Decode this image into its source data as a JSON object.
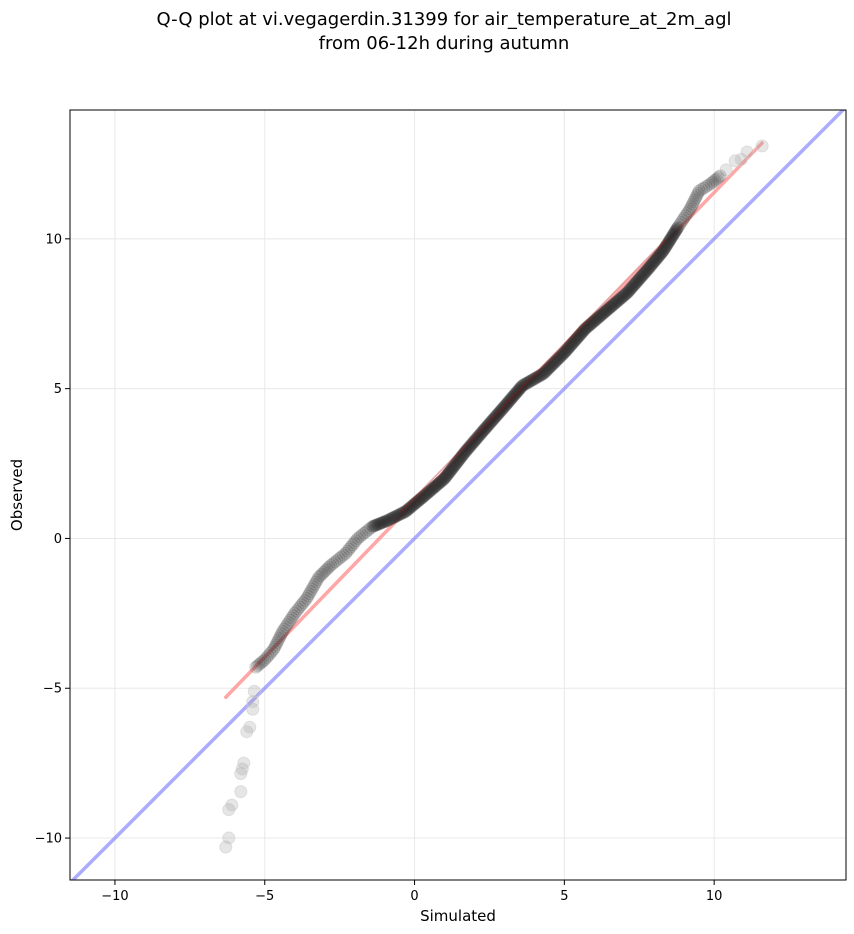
{
  "chart_data": {
    "type": "scatter",
    "title_line1": "Q-Q plot at vi.vegagerdin.31399 for air_temperature_at_2m_agl",
    "title_line2": "from 06-12h during autumn",
    "xlabel": "Simulated",
    "ylabel": "Observed",
    "xlim": [
      -11.5,
      14.4
    ],
    "ylim": [
      -11.4,
      14.3
    ],
    "xticks": [
      -10,
      -5,
      0,
      5,
      10
    ],
    "yticks": [
      -10,
      -5,
      0,
      5,
      10
    ],
    "xtick_labels": [
      "−10",
      "−5",
      "0",
      "5",
      "10"
    ],
    "ytick_labels": [
      "−10",
      "−5",
      "0",
      "5",
      "10"
    ],
    "grid": true,
    "colors": {
      "points": "#000000",
      "fit_line": "#ff8080",
      "identity_line": "#8080ff",
      "grid": "#e8e8e8"
    },
    "identity_line": {
      "x": [
        -11.5,
        14.4
      ],
      "y": [
        -11.5,
        14.4
      ]
    },
    "fit_line": {
      "x": [
        -6.3,
        11.6
      ],
      "y": [
        -5.3,
        13.2
      ]
    },
    "outlier_points": [
      {
        "x": -6.3,
        "y": -10.3
      },
      {
        "x": -6.2,
        "y": -10.0
      },
      {
        "x": -6.2,
        "y": -9.05
      },
      {
        "x": -6.1,
        "y": -8.9
      },
      {
        "x": -5.8,
        "y": -8.45
      },
      {
        "x": -5.8,
        "y": -7.85
      },
      {
        "x": -5.75,
        "y": -7.7
      },
      {
        "x": -5.7,
        "y": -7.5
      },
      {
        "x": -5.6,
        "y": -6.45
      },
      {
        "x": -5.5,
        "y": -6.3
      },
      {
        "x": -5.4,
        "y": -5.7
      },
      {
        "x": -5.4,
        "y": -5.45
      },
      {
        "x": -5.35,
        "y": -5.1
      }
    ],
    "qq_curve": [
      {
        "x": -5.3,
        "y": -4.3
      },
      {
        "x": -5.0,
        "y": -4.05
      },
      {
        "x": -4.7,
        "y": -3.7
      },
      {
        "x": -4.4,
        "y": -3.1
      },
      {
        "x": -4.0,
        "y": -2.5
      },
      {
        "x": -3.6,
        "y": -2.0
      },
      {
        "x": -3.2,
        "y": -1.3
      },
      {
        "x": -2.8,
        "y": -0.9
      },
      {
        "x": -2.3,
        "y": -0.5
      },
      {
        "x": -1.9,
        "y": 0.0
      },
      {
        "x": -1.4,
        "y": 0.4
      },
      {
        "x": -0.9,
        "y": 0.6
      },
      {
        "x": -0.3,
        "y": 0.9
      },
      {
        "x": 0.3,
        "y": 1.4
      },
      {
        "x": 1.0,
        "y": 2.0
      },
      {
        "x": 1.7,
        "y": 2.9
      },
      {
        "x": 2.3,
        "y": 3.6
      },
      {
        "x": 3.0,
        "y": 4.4
      },
      {
        "x": 3.6,
        "y": 5.1
      },
      {
        "x": 4.3,
        "y": 5.5
      },
      {
        "x": 5.0,
        "y": 6.2
      },
      {
        "x": 5.7,
        "y": 7.0
      },
      {
        "x": 6.4,
        "y": 7.6
      },
      {
        "x": 7.1,
        "y": 8.2
      },
      {
        "x": 7.8,
        "y": 9.0
      },
      {
        "x": 8.3,
        "y": 9.6
      },
      {
        "x": 8.8,
        "y": 10.4
      },
      {
        "x": 9.2,
        "y": 11.0
      },
      {
        "x": 9.5,
        "y": 11.6
      },
      {
        "x": 9.9,
        "y": 11.85
      },
      {
        "x": 10.2,
        "y": 12.1
      }
    ],
    "tail_points": [
      {
        "x": 10.4,
        "y": 12.3
      },
      {
        "x": 10.7,
        "y": 12.6
      },
      {
        "x": 10.9,
        "y": 12.65
      },
      {
        "x": 11.1,
        "y": 12.9
      },
      {
        "x": 11.6,
        "y": 13.1
      }
    ]
  }
}
